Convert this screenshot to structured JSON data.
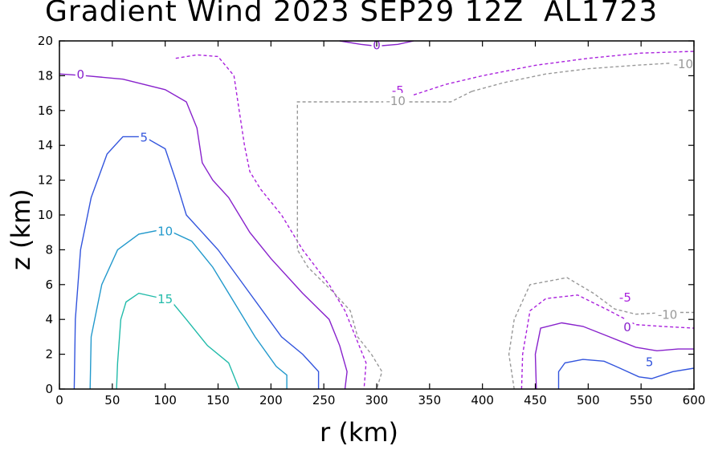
{
  "chart_data": {
    "type": "contour",
    "title": "Gradient Wind 2023 SEP29 12Z  AL1723",
    "xlabel": "r (km)",
    "ylabel": "z (km)",
    "xlim": [
      0,
      600
    ],
    "ylim": [
      0,
      20
    ],
    "xticks": [
      0,
      50,
      100,
      150,
      200,
      250,
      300,
      350,
      400,
      450,
      500,
      550,
      600
    ],
    "yticks": [
      0,
      2,
      4,
      6,
      8,
      10,
      12,
      14,
      16,
      18,
      20
    ],
    "contours": [
      {
        "level": "15",
        "color": "#22bbaa",
        "dashed": false,
        "label": {
          "text": "15",
          "x": 100,
          "y": 5.2
        },
        "points": [
          [
            54,
            0
          ],
          [
            55,
            1.5
          ],
          [
            58,
            4
          ],
          [
            63,
            5
          ],
          [
            75,
            5.5
          ],
          [
            90,
            5.3
          ],
          [
            105,
            5.1
          ],
          [
            120,
            4
          ],
          [
            140,
            2.5
          ],
          [
            160,
            1.5
          ],
          [
            170,
            0
          ]
        ]
      },
      {
        "level": "10",
        "color": "#2299cc",
        "dashed": false,
        "label": {
          "text": "10",
          "x": 100,
          "y": 9.1
        },
        "points": [
          [
            29,
            0
          ],
          [
            30,
            3
          ],
          [
            40,
            6
          ],
          [
            55,
            8
          ],
          [
            75,
            8.9
          ],
          [
            100,
            9.2
          ],
          [
            125,
            8.5
          ],
          [
            145,
            7
          ],
          [
            165,
            5
          ],
          [
            185,
            3
          ],
          [
            205,
            1.3
          ],
          [
            215,
            0.8
          ],
          [
            215,
            0
          ]
        ]
      },
      {
        "level": "5",
        "color": "#3355dd",
        "dashed": false,
        "label": {
          "text": "5",
          "x": 80,
          "y": 14.5
        },
        "points": [
          [
            14,
            0
          ],
          [
            15,
            4
          ],
          [
            20,
            8
          ],
          [
            30,
            11
          ],
          [
            45,
            13.5
          ],
          [
            60,
            14.5
          ],
          [
            80,
            14.5
          ],
          [
            100,
            13.8
          ],
          [
            110,
            12
          ],
          [
            120,
            10
          ],
          [
            150,
            8
          ],
          [
            180,
            5.5
          ],
          [
            210,
            3
          ],
          [
            230,
            2
          ],
          [
            245,
            1
          ],
          [
            245,
            0
          ]
        ]
      },
      {
        "level": "0",
        "color": "#8822cc",
        "dashed": false,
        "label": {
          "text": "0",
          "x": 20,
          "y": 18.1
        },
        "points": [
          [
            0,
            18.1
          ],
          [
            25,
            18
          ],
          [
            60,
            17.8
          ],
          [
            100,
            17.2
          ],
          [
            120,
            16.5
          ],
          [
            130,
            15
          ],
          [
            135,
            13
          ],
          [
            145,
            12
          ],
          [
            160,
            11
          ],
          [
            180,
            9
          ],
          [
            200,
            7.5
          ],
          [
            230,
            5.5
          ],
          [
            255,
            4
          ],
          [
            265,
            2.5
          ],
          [
            272,
            1
          ],
          [
            270,
            0
          ]
        ]
      },
      {
        "level": "-5",
        "color": "#aa22dd",
        "dashed": true,
        "label": {
          "text": "-5",
          "x": 320,
          "y": 17.2
        },
        "points": [
          [
            110,
            19
          ],
          [
            130,
            19.2
          ],
          [
            150,
            19.1
          ],
          [
            165,
            18
          ],
          [
            170,
            16
          ],
          [
            175,
            14
          ],
          [
            180,
            12.5
          ],
          [
            190,
            11.5
          ],
          [
            210,
            10
          ],
          [
            230,
            8
          ],
          [
            255,
            6
          ],
          [
            270,
            4.5
          ],
          [
            280,
            3
          ],
          [
            290,
            1.5
          ],
          [
            288,
            0
          ]
        ]
      },
      {
        "level": "-10",
        "color": "#999999",
        "dashed": true,
        "label": {
          "text": "-10",
          "x": 318,
          "y": 16.6
        },
        "points": [
          [
            390,
            17.1
          ],
          [
            370,
            16.5
          ],
          [
            335,
            16.5
          ],
          [
            225,
            16.5
          ],
          [
            225,
            8
          ],
          [
            235,
            7
          ],
          [
            260,
            5.5
          ],
          [
            275,
            4.5
          ],
          [
            282,
            3
          ],
          [
            295,
            2
          ],
          [
            305,
            1
          ],
          [
            300,
            0
          ]
        ]
      },
      {
        "level": "0",
        "color": "#8822cc",
        "dashed": false,
        "label": {
          "text": "0",
          "x": 300,
          "y": 19.8
        },
        "points": [
          [
            265,
            20
          ],
          [
            285,
            19.8
          ],
          [
            300,
            19.7
          ],
          [
            320,
            19.8
          ],
          [
            335,
            20
          ]
        ]
      },
      {
        "level": "-5",
        "color": "#aa22dd",
        "dashed": true,
        "label": null,
        "points": [
          [
            335,
            16.9
          ],
          [
            365,
            17.5
          ],
          [
            400,
            18
          ],
          [
            450,
            18.6
          ],
          [
            500,
            19
          ],
          [
            550,
            19.3
          ],
          [
            600,
            19.4
          ]
        ]
      },
      {
        "level": "-10",
        "color": "#999999",
        "dashed": true,
        "label": {
          "text": "-10",
          "x": 590,
          "y": 18.7
        },
        "points": [
          [
            390,
            17.1
          ],
          [
            420,
            17.6
          ],
          [
            460,
            18.1
          ],
          [
            500,
            18.4
          ],
          [
            545,
            18.6
          ],
          [
            600,
            18.8
          ]
        ]
      },
      {
        "level": "-10",
        "color": "#999999",
        "dashed": true,
        "label": {
          "text": "-10",
          "x": 575,
          "y": 4.3
        },
        "points": [
          [
            430,
            0
          ],
          [
            425,
            2
          ],
          [
            430,
            4
          ],
          [
            445,
            6
          ],
          [
            480,
            6.4
          ],
          [
            505,
            5.5
          ],
          [
            525,
            4.6
          ],
          [
            545,
            4.3
          ],
          [
            575,
            4.4
          ],
          [
            600,
            4.4
          ]
        ]
      },
      {
        "level": "-5",
        "color": "#aa22dd",
        "dashed": true,
        "label": {
          "text": "-5",
          "x": 535,
          "y": 5.3
        },
        "points": [
          [
            437,
            0
          ],
          [
            438,
            2
          ],
          [
            445,
            4.5
          ],
          [
            460,
            5.2
          ],
          [
            490,
            5.4
          ],
          [
            520,
            4.5
          ],
          [
            545,
            3.7
          ],
          [
            570,
            3.6
          ],
          [
            600,
            3.5
          ]
        ]
      },
      {
        "level": "0",
        "color": "#8822cc",
        "dashed": false,
        "label": {
          "text": "0",
          "x": 537,
          "y": 3.6
        },
        "points": [
          [
            451,
            0
          ],
          [
            450,
            2
          ],
          [
            455,
            3.5
          ],
          [
            475,
            3.8
          ],
          [
            495,
            3.6
          ],
          [
            520,
            3
          ],
          [
            545,
            2.4
          ],
          [
            565,
            2.2
          ],
          [
            585,
            2.3
          ],
          [
            600,
            2.3
          ]
        ]
      },
      {
        "level": "5",
        "color": "#3355dd",
        "dashed": false,
        "label": {
          "text": "5",
          "x": 558,
          "y": 1.6
        },
        "points": [
          [
            472,
            0
          ],
          [
            472,
            1
          ],
          [
            478,
            1.5
          ],
          [
            495,
            1.7
          ],
          [
            515,
            1.6
          ],
          [
            530,
            1.2
          ],
          [
            548,
            0.7
          ],
          [
            560,
            0.6
          ],
          [
            580,
            1
          ],
          [
            600,
            1.2
          ]
        ]
      }
    ]
  }
}
